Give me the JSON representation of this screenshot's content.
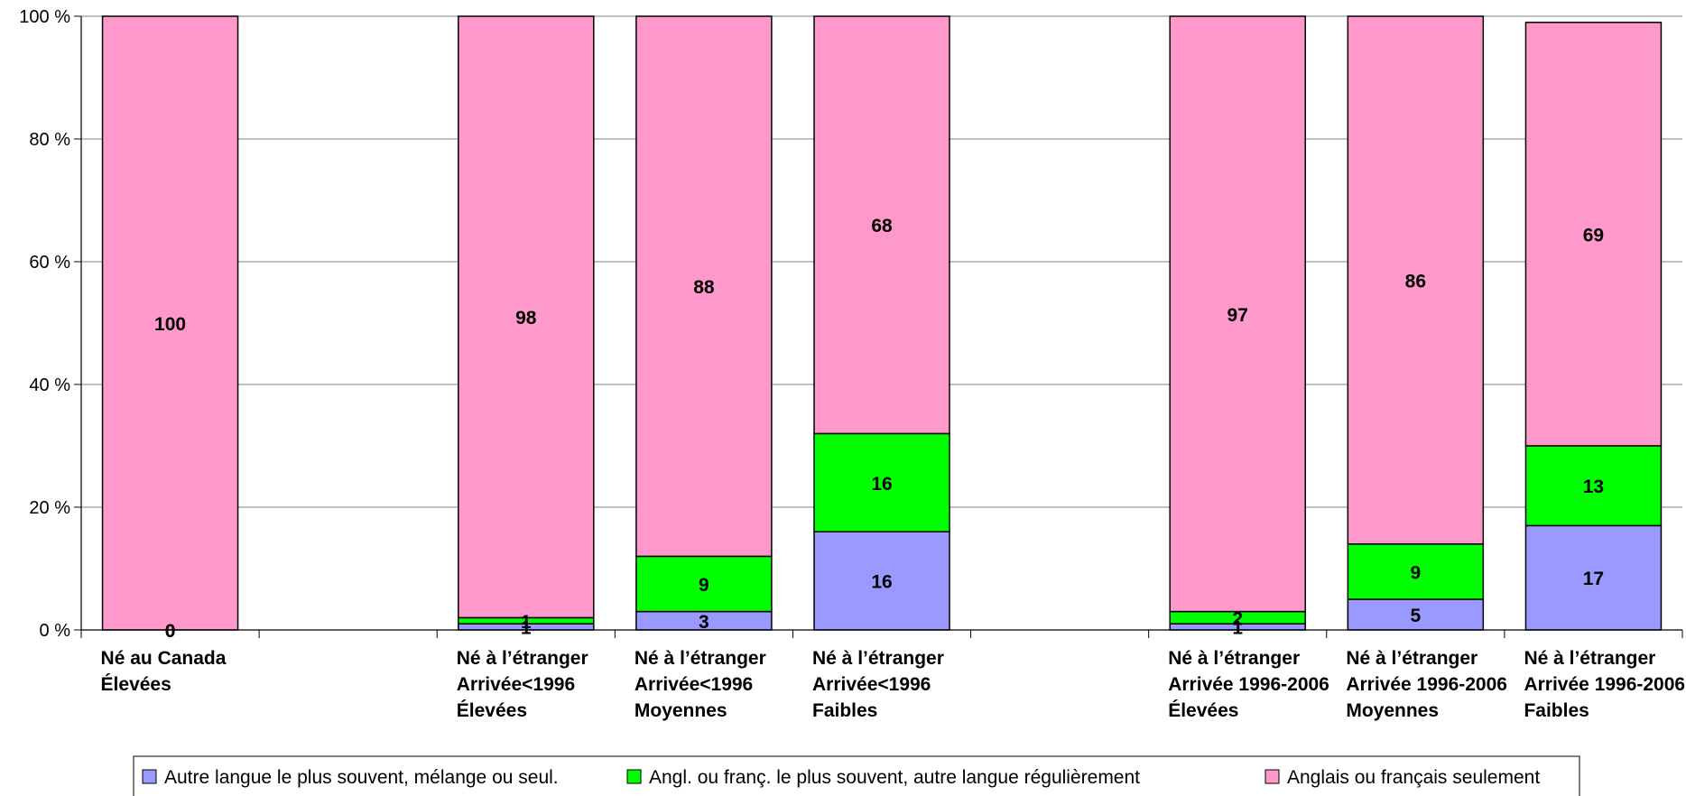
{
  "chart_data": {
    "type": "bar",
    "stacked": true,
    "normalized_percent": true,
    "yticks": [
      "0 %",
      "20 %",
      "40 %",
      "60 %",
      "80 %",
      "100 %"
    ],
    "ylim": [
      0,
      100
    ],
    "grid": true,
    "legend_position": "bottom",
    "categories": [
      [
        "Né au Canada",
        "Élevées"
      ],
      [],
      [
        "Né à l’étranger",
        "Arrivée<1996",
        "Élevées"
      ],
      [
        "Né à l’étranger",
        "Arrivée<1996",
        "Moyennes"
      ],
      [
        "Né à l’étranger",
        "Arrivée<1996",
        "Faibles"
      ],
      [],
      [
        "Né à l’étranger",
        "Arrivée 1996-2006",
        "Élevées"
      ],
      [
        "Né à l’étranger",
        "Arrivée 1996-2006",
        "Moyennes"
      ],
      [
        "Né à l’étranger",
        "Arrivée 1996-2006",
        "Faibles"
      ]
    ],
    "series": [
      {
        "name": "Autre langue le plus souvent, mélange ou seul.",
        "color": "#9999ff",
        "values": [
          0,
          null,
          1,
          3,
          16,
          null,
          1,
          5,
          17
        ],
        "labels": [
          "0",
          "",
          "1",
          "3",
          "16",
          "",
          "1",
          "5",
          "17"
        ]
      },
      {
        "name": "Angl. ou franç. le plus souvent, autre langue régulièrement",
        "color": "#00ff00",
        "values": [
          0,
          null,
          1,
          9,
          16,
          null,
          2,
          9,
          13
        ],
        "labels": [
          "0",
          "",
          "1",
          "9",
          "16",
          "",
          "2",
          "9",
          "13"
        ]
      },
      {
        "name": "Anglais ou français seulement",
        "color": "#ff99cc",
        "values": [
          100,
          null,
          98,
          88,
          68,
          null,
          97,
          86,
          69
        ],
        "labels": [
          "100",
          "",
          "98",
          "88",
          "68",
          "",
          "97",
          "86",
          "69"
        ]
      }
    ]
  }
}
